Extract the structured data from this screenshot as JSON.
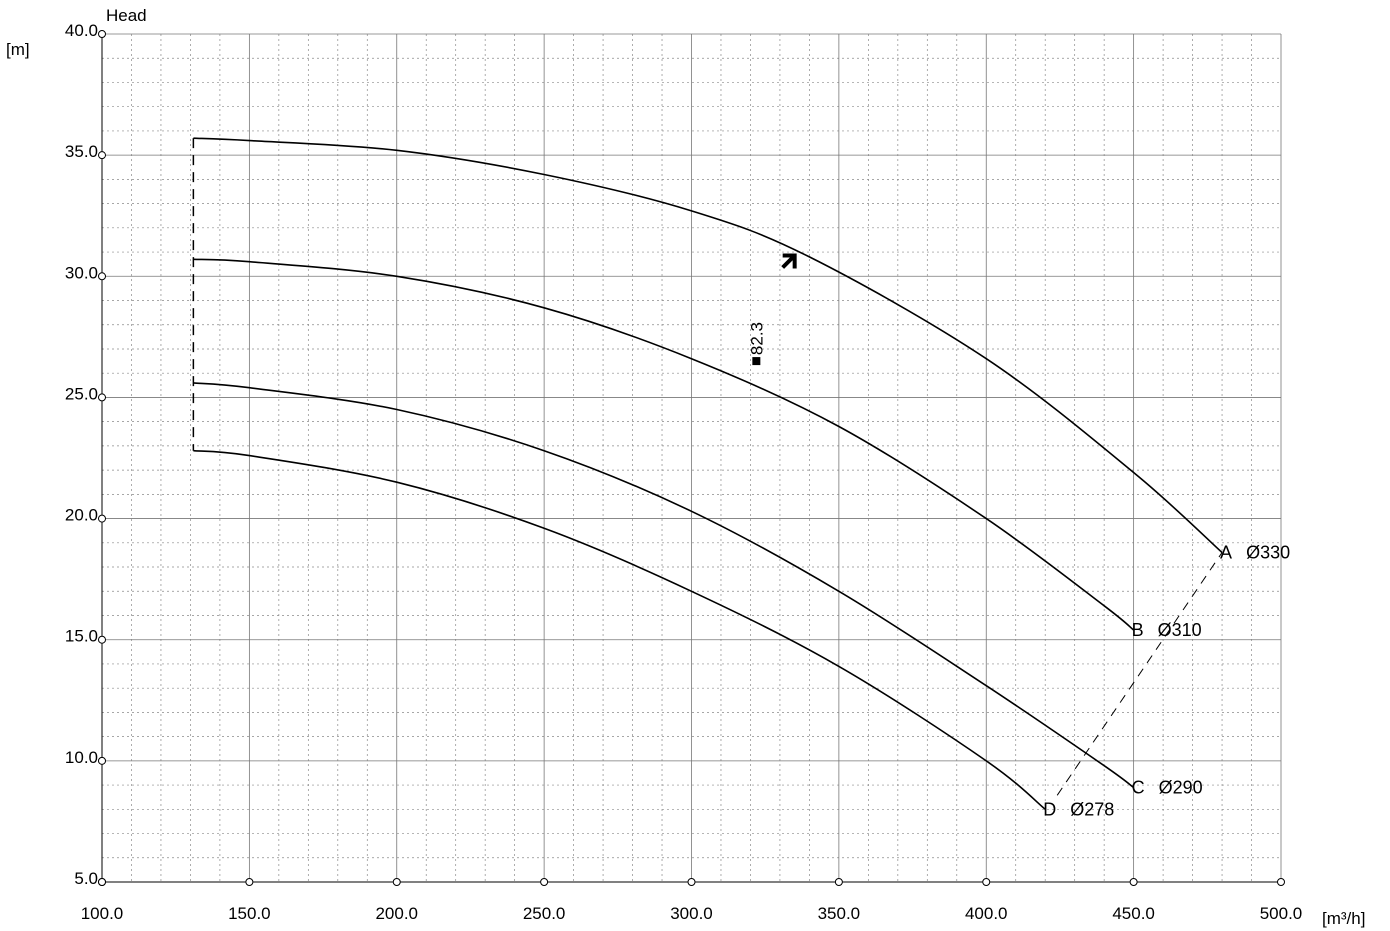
{
  "chart_data": {
    "type": "line",
    "y_axis": {
      "title": "Head",
      "unit": "[m]",
      "range": [
        5.0,
        40.0
      ],
      "ticks": [
        "5.0",
        "10.0",
        "15.0",
        "20.0",
        "25.0",
        "30.0",
        "35.0",
        "40.0"
      ]
    },
    "x_axis": {
      "unit": "[m³/h]",
      "range": [
        100.0,
        500.0
      ],
      "ticks": [
        "100.0",
        "150.0",
        "200.0",
        "250.0",
        "300.0",
        "350.0",
        "400.0",
        "450.0",
        "500.0"
      ]
    },
    "grid": true,
    "series": [
      {
        "letter": "A",
        "name": "Ø330",
        "x": [
          131,
          150,
          200,
          250,
          300,
          340,
          400,
          450,
          480
        ],
        "y": [
          35.7,
          35.6,
          35.2,
          34.2,
          32.7,
          30.8,
          26.6,
          21.9,
          18.6
        ]
      },
      {
        "letter": "B",
        "name": "Ø310",
        "x": [
          131,
          150,
          200,
          250,
          300,
          350,
          400,
          440,
          450
        ],
        "y": [
          30.7,
          30.6,
          30.0,
          28.7,
          26.6,
          23.8,
          20.0,
          16.4,
          15.4
        ]
      },
      {
        "letter": "C",
        "name": "Ø290",
        "x": [
          131,
          150,
          200,
          250,
          300,
          350,
          400,
          440,
          450
        ],
        "y": [
          25.6,
          25.4,
          24.5,
          22.8,
          20.3,
          17.0,
          13.1,
          9.8,
          8.9
        ]
      },
      {
        "letter": "D",
        "name": "Ø278",
        "x": [
          131,
          150,
          200,
          250,
          300,
          350,
          400,
          420
        ],
        "y": [
          22.8,
          22.6,
          21.5,
          19.6,
          17.0,
          13.9,
          10.0,
          8.0
        ]
      }
    ],
    "min_flow_x": 131,
    "min_flow_y_range": [
      22.8,
      35.7
    ],
    "efficiency_marker": {
      "x": 322,
      "y": 26.5,
      "label": "82.3"
    },
    "duty_point": {
      "x": 335,
      "y": 30.9
    }
  }
}
